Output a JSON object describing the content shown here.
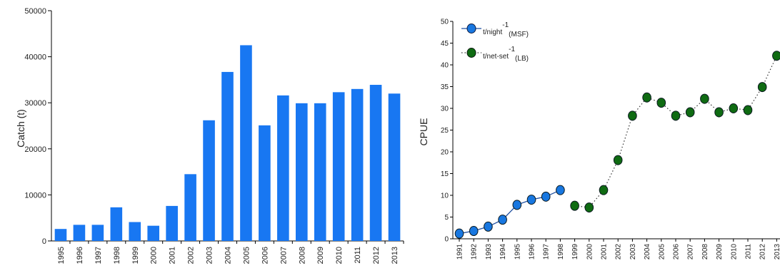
{
  "chart_data": [
    {
      "type": "bar",
      "title": "",
      "xlabel": "",
      "ylabel": "Catch (t)",
      "ylim": [
        0,
        50000
      ],
      "yticks": [
        0,
        10000,
        20000,
        30000,
        40000,
        50000
      ],
      "categories": [
        "1995",
        "1996",
        "1997",
        "1998",
        "1999",
        "2000",
        "2001",
        "2002",
        "2003",
        "2004",
        "2005",
        "2006",
        "2007",
        "2008",
        "2009",
        "2010",
        "2011",
        "2012",
        "2013"
      ],
      "values": [
        2600,
        3500,
        3500,
        7300,
        4100,
        3300,
        7600,
        14500,
        26200,
        36700,
        42500,
        25100,
        31600,
        29900,
        29900,
        32300,
        33000,
        33900,
        32000
      ],
      "color": "#1877f2",
      "grid": false,
      "legend": "none"
    },
    {
      "type": "line",
      "title": "",
      "xlabel": "",
      "ylabel": "CPUE",
      "ylim": [
        0,
        50
      ],
      "yticks": [
        0,
        5,
        10,
        15,
        20,
        25,
        30,
        35,
        40,
        45,
        50
      ],
      "categories": [
        "1991",
        "1992",
        "1993",
        "1994",
        "1995",
        "1996",
        "1997",
        "1998",
        "1999",
        "2000",
        "2001",
        "2002",
        "2003",
        "2004",
        "2005",
        "2006",
        "2007",
        "2008",
        "2009",
        "2010",
        "2011",
        "2012",
        "2013"
      ],
      "grid": false,
      "legend": "top-left",
      "series": [
        {
          "legend_main": "t/night",
          "legend_sup": "-1",
          "legend_sub": "(MSF)",
          "marker_color": "#1877e0",
          "line_style": "solid",
          "x": [
            "1991",
            "1992",
            "1993",
            "1994",
            "1995",
            "1996",
            "1997",
            "1998"
          ],
          "values": [
            1.2,
            1.8,
            2.8,
            4.4,
            7.8,
            9.0,
            9.7,
            11.2
          ]
        },
        {
          "legend_main": "t/net-set",
          "legend_sup": "-1",
          "legend_sub": "(LB)",
          "marker_color": "#0f6b12",
          "line_style": "dotted",
          "x": [
            "1999",
            "2000",
            "2001",
            "2002",
            "2003",
            "2004",
            "2005",
            "2006",
            "2007",
            "2008",
            "2009",
            "2010",
            "2011",
            "2012",
            "2013"
          ],
          "values": [
            7.6,
            7.2,
            11.2,
            18.1,
            28.3,
            32.5,
            31.3,
            28.3,
            29.1,
            32.2,
            29.1,
            30.0,
            29.6,
            34.9,
            42.1
          ]
        }
      ]
    }
  ]
}
